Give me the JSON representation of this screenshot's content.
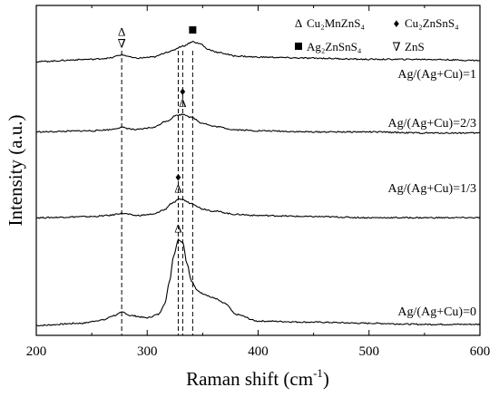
{
  "chart_data": {
    "type": "line",
    "xlabel": "Raman shift (cm",
    "xlabel_sup": "-1",
    "xlabel_close": ")",
    "ylabel": "Intensity (a.u.)",
    "xlim": [
      200,
      600
    ],
    "x_ticks": [
      "200",
      "300",
      "400",
      "500",
      "600"
    ],
    "y_ticks_labeled": false,
    "legend": [
      {
        "symbol": "Δ",
        "label": "Cu2MnZnS4",
        "display": "Cu₂MnZnS₄"
      },
      {
        "symbol": "♦",
        "label": "Cu2ZnSnS4",
        "display": "Cu₂ZnSnS₄"
      },
      {
        "symbol": "■",
        "label": "Ag2ZnSnS4",
        "display": "Ag₂ZnSnS₄"
      },
      {
        "symbol": "∇",
        "label": "ZnS",
        "display": "ZnS"
      }
    ],
    "reference_lines": [
      277,
      328,
      332,
      341
    ],
    "series": [
      {
        "name": "Ag/(Ag+Cu)=0",
        "x": [
          200,
          240,
          260,
          270,
          278,
          285,
          300,
          310,
          316,
          320,
          324,
          328,
          332,
          336,
          340,
          345,
          350,
          360,
          370,
          380,
          400,
          450,
          500,
          550,
          600
        ],
        "y": [
          0.02,
          0.04,
          0.07,
          0.11,
          0.14,
          0.11,
          0.09,
          0.12,
          0.22,
          0.42,
          0.66,
          0.8,
          0.78,
          0.58,
          0.42,
          0.34,
          0.31,
          0.27,
          0.22,
          0.12,
          0.06,
          0.05,
          0.04,
          0.03,
          0.03
        ],
        "peak_markers": [
          {
            "x": 328,
            "symbols": [
              "Δ"
            ]
          }
        ]
      },
      {
        "name": "Ag/(Ag+Cu)=1/3",
        "x": [
          200,
          250,
          265,
          277,
          290,
          305,
          315,
          322,
          330,
          340,
          350,
          360,
          380,
          400,
          450,
          500,
          550,
          600
        ],
        "y": [
          1.0,
          1.01,
          1.02,
          1.04,
          1.02,
          1.03,
          1.07,
          1.13,
          1.17,
          1.13,
          1.08,
          1.06,
          1.03,
          1.02,
          1.01,
          1.0,
          1.0,
          1.0
        ],
        "peak_markers": [
          {
            "x": 328,
            "symbols": [
              "♦",
              "Δ"
            ]
          }
        ]
      },
      {
        "name": "Ag/(Ag+Cu)=2/3",
        "x": [
          200,
          250,
          265,
          277,
          290,
          305,
          318,
          326,
          333,
          340,
          350,
          360,
          380,
          400,
          450,
          500,
          550,
          600
        ],
        "y": [
          1.78,
          1.79,
          1.8,
          1.82,
          1.8,
          1.82,
          1.88,
          1.93,
          1.94,
          1.91,
          1.86,
          1.83,
          1.8,
          1.79,
          1.78,
          1.78,
          1.77,
          1.77
        ],
        "peak_markers": [
          {
            "x": 332,
            "symbols": [
              "♦",
              "Δ"
            ]
          }
        ]
      },
      {
        "name": "Ag/(Ag+Cu)=1",
        "x": [
          200,
          250,
          265,
          277,
          290,
          305,
          320,
          332,
          341,
          348,
          355,
          365,
          380,
          400,
          450,
          500,
          550,
          600
        ],
        "y": [
          2.42,
          2.44,
          2.45,
          2.48,
          2.45,
          2.46,
          2.51,
          2.56,
          2.6,
          2.58,
          2.53,
          2.5,
          2.47,
          2.46,
          2.45,
          2.44,
          2.44,
          2.43
        ],
        "peak_markers": [
          {
            "x": 277,
            "symbols": [
              "Δ",
              "∇"
            ]
          },
          {
            "x": 341,
            "symbols": [
              "■"
            ]
          }
        ]
      }
    ]
  }
}
